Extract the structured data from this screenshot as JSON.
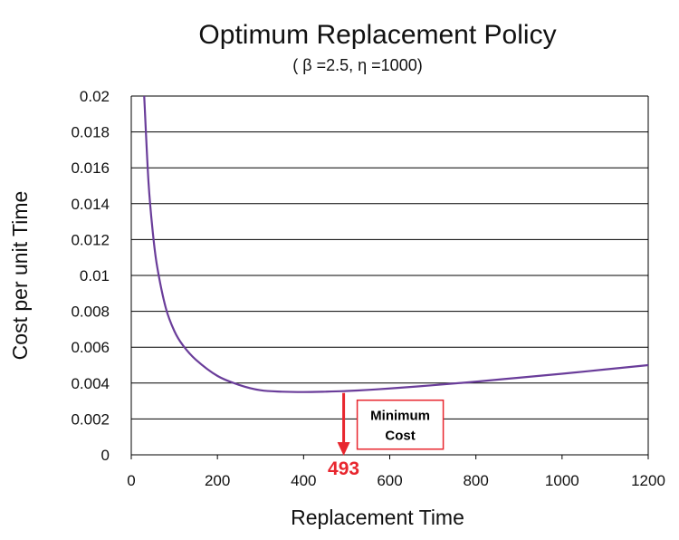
{
  "chart_data": {
    "type": "line",
    "title": "Optimum Replacement Policy",
    "subtitle": "( β =2.5,  η =1000)",
    "xlabel": "Replacement Time",
    "ylabel": "Cost per unit Time",
    "xlim": [
      0,
      1200
    ],
    "ylim": [
      0,
      0.02
    ],
    "x_ticks": [
      "0",
      "200",
      "400",
      "600",
      "800",
      "1000",
      "1200"
    ],
    "y_ticks": [
      "0",
      "0.002",
      "0.004",
      "0.006",
      "0.008",
      "0.01",
      "0.012",
      "0.014",
      "0.016",
      "0.018",
      "0.02"
    ],
    "grid": "horizontal",
    "series": [
      {
        "color": "#6a3d9a",
        "x": [
          30,
          40,
          50,
          60,
          80,
          100,
          120,
          150,
          200,
          250,
          300,
          350,
          400,
          450,
          493,
          550,
          600,
          700,
          800,
          900,
          1000,
          1100,
          1200
        ],
        "y": [
          0.02,
          0.0152,
          0.0124,
          0.0105,
          0.0082,
          0.0069,
          0.0061,
          0.0053,
          0.0044,
          0.0039,
          0.0036,
          0.00352,
          0.0035,
          0.00352,
          0.00355,
          0.00362,
          0.0037,
          0.00388,
          0.00408,
          0.0043,
          0.00452,
          0.00476,
          0.005
        ]
      }
    ],
    "annotation": {
      "text_line1": "Minimum",
      "text_line2": "Cost",
      "x_value": 493,
      "x_label": "493",
      "color": "#e8262e"
    }
  }
}
